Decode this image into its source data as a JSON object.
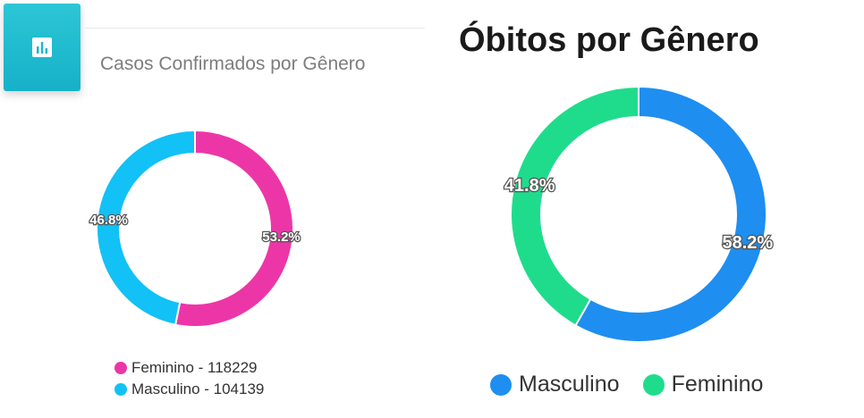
{
  "chart_data": [
    {
      "type": "pie",
      "donut": true,
      "title": "Casos Confirmados por Gênero",
      "slices": [
        {
          "name": "Feminino",
          "value": 118229,
          "percent": 53.2,
          "label": "53.2%",
          "legend": "Feminino - 118229",
          "color": "#ec36a7"
        },
        {
          "name": "Masculino",
          "value": 104139,
          "percent": 46.8,
          "label": "46.8%",
          "legend": "Masculino - 104139",
          "color": "#12c1f5"
        }
      ],
      "legend_position": "bottom"
    },
    {
      "type": "pie",
      "donut": true,
      "title": "Óbitos por Gênero",
      "slices": [
        {
          "name": "Masculino",
          "percent": 58.2,
          "label": "58.2%",
          "color": "#1e8ef0"
        },
        {
          "name": "Feminino",
          "percent": 41.8,
          "label": "41.8%",
          "color": "#1fdc8c"
        }
      ],
      "legend_position": "bottom"
    }
  ],
  "header": {
    "icon": "bar-chart-icon"
  }
}
